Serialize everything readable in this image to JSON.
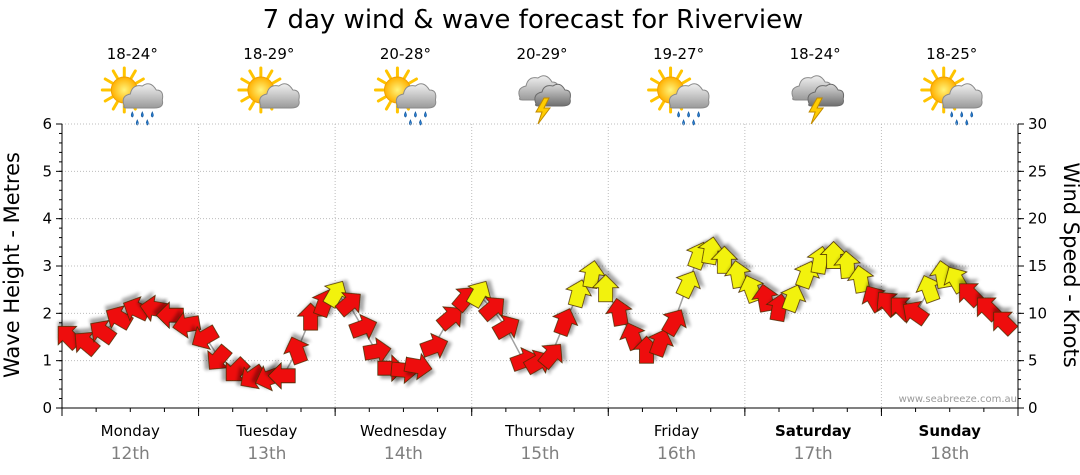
{
  "title": "7 day wind & wave forecast for Riverview",
  "left_axis_label": "Wave Height - Metres",
  "right_axis_label": "Wind Speed - Knots",
  "watermark": "www.seabreeze.com.au",
  "colors": {
    "arrow_red": "#ee1111",
    "arrow_yellow": "#f2f20a",
    "grid": "#bdbdbd",
    "axis": "#000000"
  },
  "days": [
    {
      "day": "Monday",
      "date": "12th",
      "temp": "18-24°",
      "icon": "sun-cloud-rain-icon",
      "bold": false
    },
    {
      "day": "Tuesday",
      "date": "13th",
      "temp": "18-29°",
      "icon": "sun-cloud-icon",
      "bold": false
    },
    {
      "day": "Wednesday",
      "date": "14th",
      "temp": "20-28°",
      "icon": "sun-cloud-rain-icon",
      "bold": false
    },
    {
      "day": "Thursday",
      "date": "15th",
      "temp": "20-29°",
      "icon": "storm-cloud-icon",
      "bold": false
    },
    {
      "day": "Friday",
      "date": "16th",
      "temp": "19-27°",
      "icon": "sun-cloud-rain-icon",
      "bold": false
    },
    {
      "day": "Saturday",
      "date": "17th",
      "temp": "18-24°",
      "icon": "storm-cloud-icon",
      "bold": true
    },
    {
      "day": "Sunday",
      "date": "18th",
      "temp": "18-25°",
      "icon": "sun-cloud-rain-icon",
      "bold": true
    }
  ],
  "chart_data": {
    "type": "line",
    "title": "7 day wind & wave forecast for Riverview",
    "x_unit": "day",
    "xlim": [
      0,
      7
    ],
    "y_left": {
      "label": "Wave Height - Metres",
      "lim": [
        0,
        6
      ],
      "ticks": [
        0,
        1,
        2,
        3,
        4,
        5,
        6
      ]
    },
    "y_right": {
      "label": "Wind Speed - Knots",
      "lim": [
        0,
        30
      ],
      "ticks": [
        0,
        5,
        10,
        15,
        20,
        25,
        30
      ]
    },
    "grid": true,
    "series": [
      {
        "axis": "right",
        "points": [
          {
            "x": 0.05,
            "y": 7.5,
            "dir": 135,
            "c": "red"
          },
          {
            "x": 0.18,
            "y": 6.8,
            "dir": 130,
            "c": "red"
          },
          {
            "x": 0.3,
            "y": 8.0,
            "dir": 125,
            "c": "red"
          },
          {
            "x": 0.42,
            "y": 9.5,
            "dir": 120,
            "c": "red"
          },
          {
            "x": 0.55,
            "y": 10.4,
            "dir": 115,
            "c": "red"
          },
          {
            "x": 0.68,
            "y": 10.5,
            "dir": 100,
            "c": "red"
          },
          {
            "x": 0.8,
            "y": 9.8,
            "dir": 90,
            "c": "red"
          },
          {
            "x": 0.92,
            "y": 8.8,
            "dir": 80,
            "c": "red"
          },
          {
            "x": 1.05,
            "y": 7.5,
            "dir": 60,
            "c": "red"
          },
          {
            "x": 1.15,
            "y": 5.3,
            "dir": 40,
            "c": "red"
          },
          {
            "x": 1.28,
            "y": 4.0,
            "dir": 45,
            "c": "red"
          },
          {
            "x": 1.4,
            "y": 3.3,
            "dir": 55,
            "c": "red"
          },
          {
            "x": 1.52,
            "y": 3.2,
            "dir": 70,
            "c": "red"
          },
          {
            "x": 1.62,
            "y": 3.4,
            "dir": 90,
            "c": "red"
          },
          {
            "x": 1.72,
            "y": 6.0,
            "dir": 160,
            "c": "red"
          },
          {
            "x": 1.82,
            "y": 9.5,
            "dir": 180,
            "c": "red"
          },
          {
            "x": 1.92,
            "y": 11.0,
            "dir": 200,
            "c": "red"
          },
          {
            "x": 2.0,
            "y": 12.0,
            "dir": 210,
            "c": "yellow"
          },
          {
            "x": 2.1,
            "y": 11.0,
            "dir": 230,
            "c": "red"
          },
          {
            "x": 2.2,
            "y": 8.5,
            "dir": 250,
            "c": "red"
          },
          {
            "x": 2.3,
            "y": 6.0,
            "dir": 260,
            "c": "red"
          },
          {
            "x": 2.4,
            "y": 4.2,
            "dir": 270,
            "c": "red"
          },
          {
            "x": 2.5,
            "y": 4.0,
            "dir": 275,
            "c": "red"
          },
          {
            "x": 2.6,
            "y": 4.4,
            "dir": 280,
            "c": "red"
          },
          {
            "x": 2.72,
            "y": 6.5,
            "dir": 250,
            "c": "red"
          },
          {
            "x": 2.84,
            "y": 9.5,
            "dir": 230,
            "c": "red"
          },
          {
            "x": 2.95,
            "y": 11.5,
            "dir": 220,
            "c": "red"
          },
          {
            "x": 3.05,
            "y": 12.0,
            "dir": 210,
            "c": "yellow"
          },
          {
            "x": 3.15,
            "y": 10.5,
            "dir": 230,
            "c": "red"
          },
          {
            "x": 3.25,
            "y": 8.5,
            "dir": 240,
            "c": "red"
          },
          {
            "x": 3.38,
            "y": 5.0,
            "dir": 250,
            "c": "red"
          },
          {
            "x": 3.48,
            "y": 4.8,
            "dir": 240,
            "c": "red"
          },
          {
            "x": 3.58,
            "y": 5.5,
            "dir": 220,
            "c": "red"
          },
          {
            "x": 3.68,
            "y": 9.0,
            "dir": 200,
            "c": "red"
          },
          {
            "x": 3.78,
            "y": 12.0,
            "dir": 195,
            "c": "yellow"
          },
          {
            "x": 3.88,
            "y": 14.0,
            "dir": 190,
            "c": "yellow"
          },
          {
            "x": 3.98,
            "y": 12.5,
            "dir": 180,
            "c": "yellow"
          },
          {
            "x": 4.08,
            "y": 10.0,
            "dir": 170,
            "c": "red"
          },
          {
            "x": 4.18,
            "y": 7.5,
            "dir": 160,
            "c": "red"
          },
          {
            "x": 4.28,
            "y": 6.0,
            "dir": 180,
            "c": "red"
          },
          {
            "x": 4.38,
            "y": 6.8,
            "dir": 200,
            "c": "red"
          },
          {
            "x": 4.48,
            "y": 9.0,
            "dir": 210,
            "c": "red"
          },
          {
            "x": 4.58,
            "y": 13.0,
            "dir": 205,
            "c": "yellow"
          },
          {
            "x": 4.66,
            "y": 16.0,
            "dir": 200,
            "c": "yellow"
          },
          {
            "x": 4.75,
            "y": 16.5,
            "dir": 190,
            "c": "yellow"
          },
          {
            "x": 4.85,
            "y": 15.5,
            "dir": 180,
            "c": "yellow"
          },
          {
            "x": 4.95,
            "y": 14.0,
            "dir": 170,
            "c": "yellow"
          },
          {
            "x": 5.05,
            "y": 12.5,
            "dir": 160,
            "c": "yellow"
          },
          {
            "x": 5.15,
            "y": 11.5,
            "dir": 170,
            "c": "red"
          },
          {
            "x": 5.25,
            "y": 10.5,
            "dir": 190,
            "c": "red"
          },
          {
            "x": 5.35,
            "y": 11.5,
            "dir": 200,
            "c": "yellow"
          },
          {
            "x": 5.45,
            "y": 14.0,
            "dir": 200,
            "c": "yellow"
          },
          {
            "x": 5.55,
            "y": 15.5,
            "dir": 190,
            "c": "yellow"
          },
          {
            "x": 5.65,
            "y": 16.0,
            "dir": 180,
            "c": "yellow"
          },
          {
            "x": 5.75,
            "y": 15.0,
            "dir": 175,
            "c": "yellow"
          },
          {
            "x": 5.85,
            "y": 13.5,
            "dir": 170,
            "c": "yellow"
          },
          {
            "x": 5.95,
            "y": 11.5,
            "dir": 150,
            "c": "red"
          },
          {
            "x": 6.05,
            "y": 11.0,
            "dir": 140,
            "c": "red"
          },
          {
            "x": 6.15,
            "y": 10.5,
            "dir": 135,
            "c": "red"
          },
          {
            "x": 6.25,
            "y": 10.0,
            "dir": 125,
            "c": "red"
          },
          {
            "x": 6.35,
            "y": 12.5,
            "dir": 160,
            "c": "yellow"
          },
          {
            "x": 6.45,
            "y": 14.0,
            "dir": 170,
            "c": "yellow"
          },
          {
            "x": 6.55,
            "y": 13.5,
            "dir": 150,
            "c": "yellow"
          },
          {
            "x": 6.65,
            "y": 12.0,
            "dir": 135,
            "c": "red"
          },
          {
            "x": 6.78,
            "y": 10.5,
            "dir": 135,
            "c": "red"
          },
          {
            "x": 6.9,
            "y": 9.0,
            "dir": 135,
            "c": "red"
          }
        ]
      }
    ]
  }
}
